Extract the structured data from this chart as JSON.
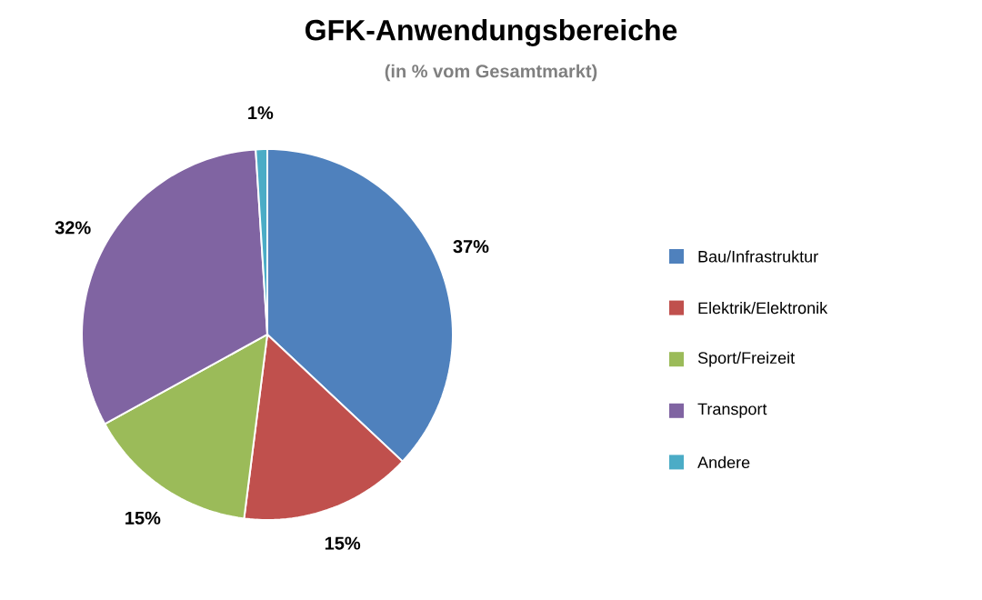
{
  "chart_data": {
    "type": "pie",
    "title": "GFK-Anwendungsbereiche",
    "subtitle": "(in % vom Gesamtmarkt)",
    "categories": [
      "Bau/Infrastruktur",
      "Elektrik/Elektronik",
      "Sport/Freizeit",
      "Transport",
      "Andere"
    ],
    "values": [
      37,
      15,
      15,
      32,
      1
    ],
    "value_labels": [
      "37%",
      "15%",
      "15%",
      "32%",
      "1%"
    ],
    "colors": [
      "#4f81bd",
      "#c0504d",
      "#9bbb59",
      "#8064a2",
      "#4bacc6"
    ],
    "legend": "right"
  }
}
